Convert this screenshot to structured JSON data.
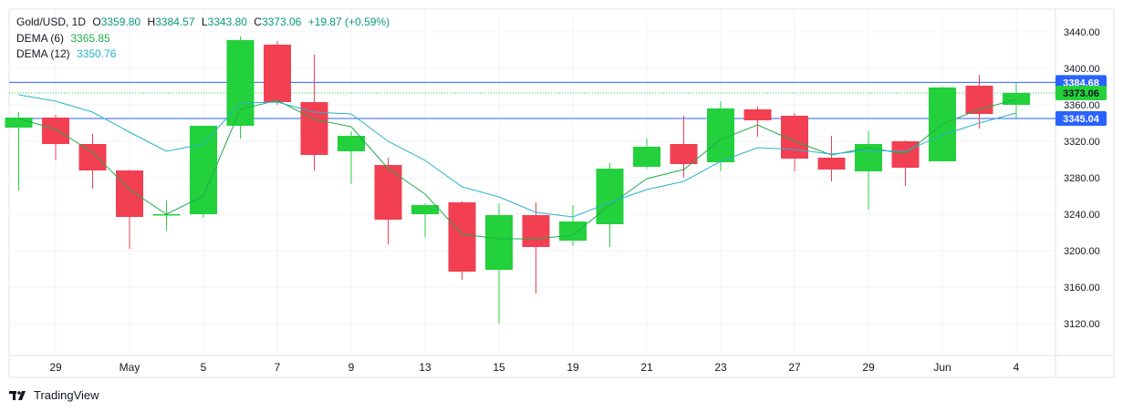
{
  "header": {
    "symbol": "Gold/USD, 1D",
    "open_label": "O",
    "open": "3359.80",
    "high_label": "H",
    "high": "3384.57",
    "low_label": "L",
    "low": "3343.80",
    "close_label": "C",
    "close": "3373.06",
    "change": "+19.87 (+0.59%)",
    "dema6_label": "DEMA (6)",
    "dema6_value": "3365.85",
    "dema12_label": "DEMA (12)",
    "dema12_value": "3350.76"
  },
  "brand": {
    "name": "TradingView",
    "logo": "tradingview-logo-icon"
  },
  "colors": {
    "up": "#22d13b",
    "down": "#f23f52",
    "dema6": "#22ab4b",
    "dema12": "#26b3cf",
    "hline": "#2962ff",
    "price_label": "#22d13b",
    "hline_label": "#2962ff"
  },
  "chart_data": {
    "type": "candlestick",
    "title": "Gold/USD, 1D",
    "ylim": [
      3085,
      3465
    ],
    "yticks": [
      3120,
      3160,
      3200,
      3240,
      3280,
      3320,
      3360,
      3400,
      3440
    ],
    "ytick_labels": [
      "3120.00",
      "3160.00",
      "3200.00",
      "3240.00",
      "3280.00",
      "3320.00",
      "3360.00",
      "3400.00",
      "3440.00"
    ],
    "xtick_labels": [
      {
        "index": 1,
        "label": "29"
      },
      {
        "index": 3,
        "label": "May"
      },
      {
        "index": 5,
        "label": "5"
      },
      {
        "index": 7,
        "label": "7"
      },
      {
        "index": 9,
        "label": "9"
      },
      {
        "index": 11,
        "label": "13"
      },
      {
        "index": 13,
        "label": "15"
      },
      {
        "index": 15,
        "label": "19"
      },
      {
        "index": 17,
        "label": "21"
      },
      {
        "index": 19,
        "label": "23"
      },
      {
        "index": 21,
        "label": "27"
      },
      {
        "index": 23,
        "label": "29"
      },
      {
        "index": 25,
        "label": "Jun"
      },
      {
        "index": 27,
        "label": "4"
      }
    ],
    "candles": [
      {
        "o": 3335,
        "h": 3352,
        "l": 3266,
        "c": 3346
      },
      {
        "o": 3346,
        "h": 3349,
        "l": 3299,
        "c": 3317
      },
      {
        "o": 3317,
        "h": 3328,
        "l": 3268,
        "c": 3288
      },
      {
        "o": 3288,
        "h": 3289,
        "l": 3202,
        "c": 3237
      },
      {
        "o": 3240,
        "h": 3255,
        "l": 3222,
        "c": 3240
      },
      {
        "o": 3240,
        "h": 3337,
        "l": 3236,
        "c": 3337
      },
      {
        "o": 3337,
        "h": 3435,
        "l": 3323,
        "c": 3431
      },
      {
        "o": 3426,
        "h": 3430,
        "l": 3360,
        "c": 3363
      },
      {
        "o": 3363,
        "h": 3415,
        "l": 3288,
        "c": 3305
      },
      {
        "o": 3309,
        "h": 3331,
        "l": 3273,
        "c": 3326
      },
      {
        "o": 3294,
        "h": 3302,
        "l": 3207,
        "c": 3234
      },
      {
        "o": 3240,
        "h": 3252,
        "l": 3215,
        "c": 3250
      },
      {
        "o": 3253,
        "h": 3254,
        "l": 3168,
        "c": 3177
      },
      {
        "o": 3179,
        "h": 3252,
        "l": 3120,
        "c": 3239
      },
      {
        "o": 3239,
        "h": 3253,
        "l": 3153,
        "c": 3204
      },
      {
        "o": 3211,
        "h": 3250,
        "l": 3205,
        "c": 3232
      },
      {
        "o": 3229,
        "h": 3296,
        "l": 3204,
        "c": 3290
      },
      {
        "o": 3292,
        "h": 3323,
        "l": 3290,
        "c": 3314
      },
      {
        "o": 3317,
        "h": 3348,
        "l": 3280,
        "c": 3295
      },
      {
        "o": 3297,
        "h": 3364,
        "l": 3287,
        "c": 3356
      },
      {
        "o": 3355,
        "h": 3358,
        "l": 3325,
        "c": 3343
      },
      {
        "o": 3348,
        "h": 3351,
        "l": 3287,
        "c": 3301
      },
      {
        "o": 3302,
        "h": 3326,
        "l": 3276,
        "c": 3289
      },
      {
        "o": 3287,
        "h": 3331,
        "l": 3245,
        "c": 3317
      },
      {
        "o": 3320,
        "h": 3321,
        "l": 3271,
        "c": 3291
      },
      {
        "o": 3298,
        "h": 3380,
        "l": 3298,
        "c": 3379
      },
      {
        "o": 3381,
        "h": 3393,
        "l": 3334,
        "c": 3350
      },
      {
        "o": 3360,
        "h": 3385,
        "l": 3344,
        "c": 3373
      }
    ],
    "series": [
      {
        "name": "DEMA (6)",
        "values": [
          3345,
          3333,
          3308,
          3267,
          3240,
          3260,
          3355,
          3365,
          3344,
          3336,
          3290,
          3262,
          3218,
          3213,
          3213,
          3217,
          3250,
          3279,
          3289,
          3322,
          3338,
          3320,
          3305,
          3313,
          3306,
          3339,
          3355,
          3366
        ]
      },
      {
        "name": "DEMA (12)",
        "values": [
          3371,
          3364,
          3352,
          3330,
          3309,
          3317,
          3362,
          3363,
          3352,
          3350,
          3320,
          3299,
          3270,
          3259,
          3242,
          3237,
          3253,
          3267,
          3276,
          3298,
          3313,
          3311,
          3306,
          3310,
          3309,
          3327,
          3340,
          3351
        ]
      }
    ],
    "hlines": [
      {
        "value": 3384.68,
        "label": "3384.68",
        "style": "solid"
      },
      {
        "value": 3345.04,
        "label": "3345.04",
        "style": "solid"
      }
    ],
    "last_price": {
      "value": 3373.06,
      "label": "3373.06"
    }
  }
}
